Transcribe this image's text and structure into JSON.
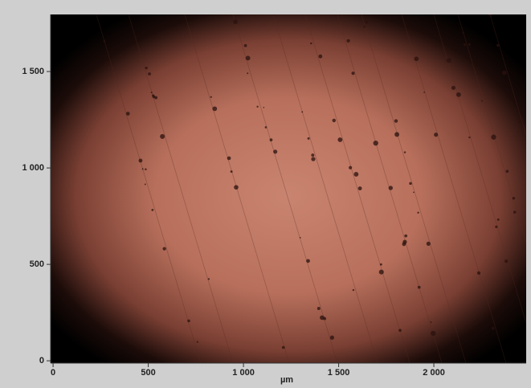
{
  "chart_data": {
    "type": "image",
    "x_label": "µm",
    "xlim": [
      -13,
      2485
    ],
    "ylim": [
      -12,
      1796
    ],
    "xticks": [
      0,
      500,
      {
        "value": 1000,
        "label": "1 000"
      },
      {
        "value": 1500,
        "label": "1 500"
      },
      {
        "value": 2000,
        "label": "2 000"
      }
    ],
    "yticks": [
      0,
      500,
      {
        "value": 1000,
        "label": "1 000"
      },
      {
        "value": 1500,
        "label": "1 500"
      }
    ]
  }
}
